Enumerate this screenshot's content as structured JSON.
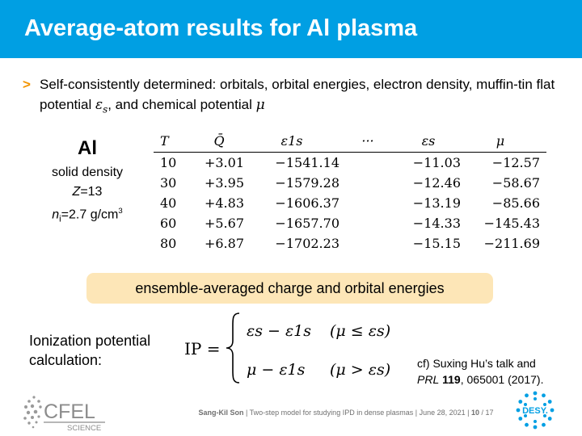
{
  "title": "Average-atom results for Al plasma",
  "bullet": {
    "marker": ">",
    "text_part1": "Self-consistently determined: orbitals, orbital energies, electron density, muffin-tin flat potential ",
    "eps": "ε",
    "eps_sub": "s",
    "text_part2": ", and chemical potential ",
    "mu": "μ"
  },
  "element": {
    "symbol": "Al",
    "line1": "solid density",
    "z_var": "Z",
    "z_val": "=13",
    "n_var": "n",
    "n_sub": "i",
    "n_val": "=2.7 g/cm",
    "n_sup": "3"
  },
  "table": {
    "headers": [
      "T",
      "Q̄",
      "ε1s",
      "···",
      "εs",
      "μ"
    ],
    "rows": [
      [
        "10",
        "+3.01",
        "−1541.14",
        "",
        "−11.03",
        "−12.57"
      ],
      [
        "30",
        "+3.95",
        "−1579.28",
        "",
        "−12.46",
        "−58.67"
      ],
      [
        "40",
        "+4.83",
        "−1606.37",
        "",
        "−13.19",
        "−85.66"
      ],
      [
        "60",
        "+5.67",
        "−1657.70",
        "",
        "−14.33",
        "−145.43"
      ],
      [
        "80",
        "+6.87",
        "−1702.23",
        "",
        "−15.15",
        "−211.69"
      ]
    ]
  },
  "highlight": "ensemble-averaged charge and orbital energies",
  "ip": {
    "label_line1": "Ionization potential",
    "label_line2": "calculation:",
    "lhs": "IP =",
    "case1_expr": "εs − ε1s",
    "case1_cond": "(μ ≤ εs)",
    "case2_expr": "μ − ε1s",
    "case2_cond": "(μ > εs)"
  },
  "reference": {
    "line1": "cf) Suxing Hu’s talk and",
    "journal": "PRL",
    "volume": "119",
    "rest": ", 065001 (2017)."
  },
  "footer": {
    "author": "Sang-Kil Son",
    "talk": "Two-step model for studying IPD in dense plasmas",
    "date": "June 28, 2021",
    "page": "10",
    "total": "17"
  },
  "logos": {
    "cfel_text": "CFEL",
    "cfel_sub": "SCIENCE",
    "desy_text": "DESY."
  },
  "colors": {
    "title_bar": "#009fe3",
    "bullet_marker": "#f29400",
    "highlight_bg": "#fde6b7"
  }
}
